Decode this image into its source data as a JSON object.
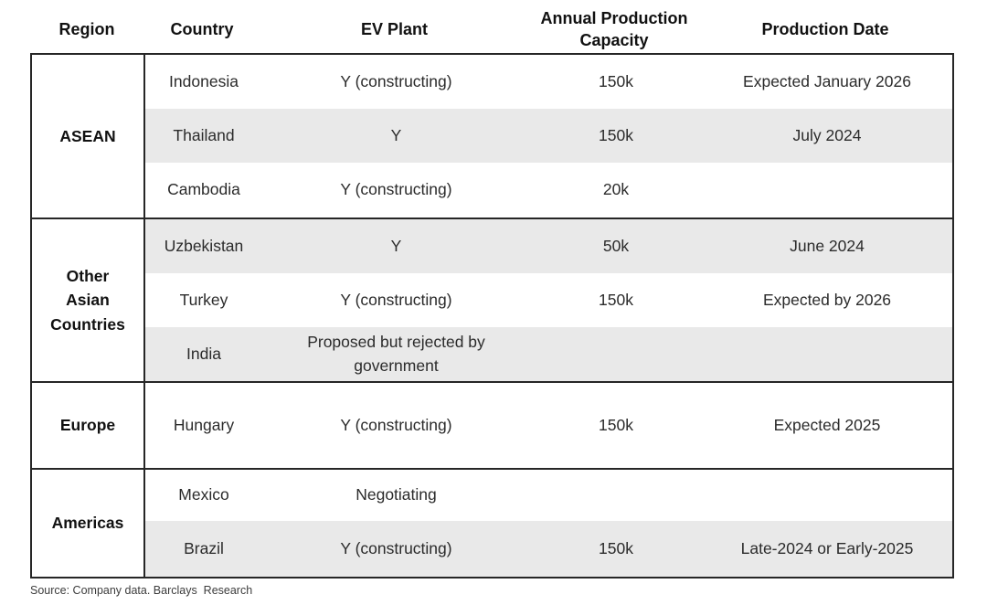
{
  "chart_data": {
    "type": "table",
    "columns": [
      "Region",
      "Country",
      "EV Plant",
      "Annual Production Capacity",
      "Production Date"
    ],
    "sections": [
      {
        "region": "ASEAN",
        "rows": [
          {
            "country": "Indonesia",
            "ev_plant": "Y (constructing)",
            "capacity": "150k",
            "production_date": "Expected January 2026"
          },
          {
            "country": "Thailand",
            "ev_plant": "Y",
            "capacity": "150k",
            "production_date": "July 2024"
          },
          {
            "country": "Cambodia",
            "ev_plant": "Y (constructing)",
            "capacity": "20k",
            "production_date": ""
          }
        ]
      },
      {
        "region": "Other Asian Countries",
        "rows": [
          {
            "country": "Uzbekistan",
            "ev_plant": "Y",
            "capacity": "50k",
            "production_date": "June 2024"
          },
          {
            "country": "Turkey",
            "ev_plant": "Y (constructing)",
            "capacity": "150k",
            "production_date": "Expected by 2026"
          },
          {
            "country": "India",
            "ev_plant": "Proposed but rejected by government",
            "capacity": "",
            "production_date": ""
          }
        ]
      },
      {
        "region": "Europe",
        "rows": [
          {
            "country": "Hungary",
            "ev_plant": "Y (constructing)",
            "capacity": "150k",
            "production_date": "Expected 2025"
          }
        ]
      },
      {
        "region": "Americas",
        "rows": [
          {
            "country": "Mexico",
            "ev_plant": "Negotiating",
            "capacity": "",
            "production_date": ""
          },
          {
            "country": "Brazil",
            "ev_plant": "Y (constructing)",
            "capacity": "150k",
            "production_date": "Late-2024 or Early-2025"
          }
        ]
      }
    ],
    "layout": {
      "shaded_row_color": "#e9e9e9",
      "border_color": "#262626",
      "region_column_divider": true
    }
  },
  "source_note": "Source: Company data. Barclays  Research"
}
